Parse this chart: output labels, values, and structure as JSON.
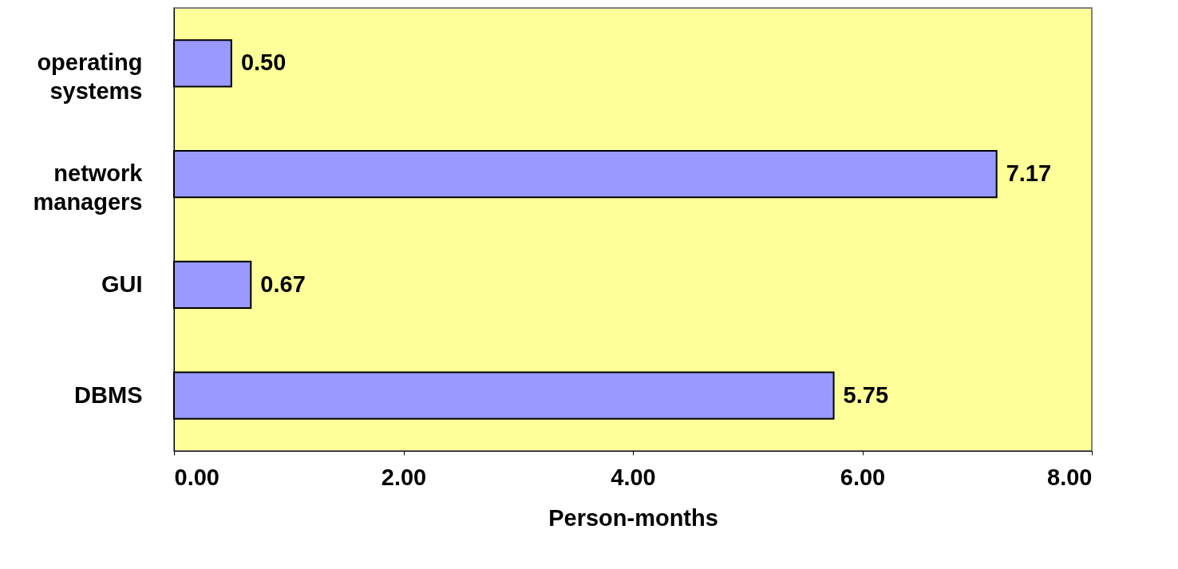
{
  "chart_data": {
    "type": "bar",
    "orientation": "horizontal",
    "xlabel": "Person-months",
    "categories": [
      "operating systems",
      "network managers",
      "GUI",
      "DBMS"
    ],
    "values": [
      0.5,
      7.17,
      0.67,
      5.75
    ],
    "color": "#9999ff",
    "xlim": [
      0,
      8
    ],
    "xticks": [
      {
        "value": 0,
        "label": "0.00"
      },
      {
        "value": 2,
        "label": "2.00"
      },
      {
        "value": 4,
        "label": "4.00"
      },
      {
        "value": 6,
        "label": "6.00"
      },
      {
        "value": 8,
        "label": "8.00"
      }
    ],
    "value_labels": [
      "0.50",
      "7.17",
      "0.67",
      "5.75"
    ],
    "grid": false
  }
}
